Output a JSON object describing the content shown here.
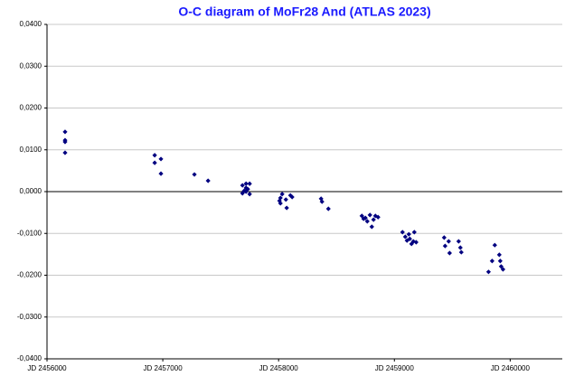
{
  "chart_data": {
    "type": "scatter",
    "title": "O-C diagram of MoFr28 And (ATLAS 2023)",
    "x": [
      2456156,
      2456156,
      2456156,
      2456156,
      2456930,
      2456930,
      2456984,
      2456984,
      2457273,
      2457391,
      2457688,
      2457719,
      2457750,
      2457703,
      2457719,
      2457734,
      2457688,
      2457750,
      2457719,
      2458008,
      2458016,
      2458031,
      2458063,
      2458070,
      2458102,
      2458117,
      2458016,
      2458367,
      2458375,
      2458430,
      2458719,
      2458734,
      2458750,
      2458766,
      2458789,
      2458805,
      2458820,
      2458836,
      2458859,
      2459070,
      2459094,
      2459109,
      2459125,
      2459133,
      2459148,
      2459164,
      2459172,
      2459188,
      2459430,
      2459438,
      2459469,
      2459477,
      2459555,
      2459570,
      2459578,
      2459813,
      2459844,
      2459867,
      2459906,
      2459914,
      2459922,
      2459938
    ],
    "series": [
      {
        "name": "O-C",
        "color": "#000080",
        "values": [
          0.0143,
          0.0123,
          0.0119,
          0.0093,
          0.0087,
          0.0069,
          0.0078,
          0.0043,
          0.0041,
          0.0026,
          0.0015,
          0.0019,
          0.0019,
          0.0002,
          0,
          0.0006,
          -0.0004,
          -0.0006,
          0.0009,
          -0.0022,
          -0.0015,
          -0.0006,
          -0.0019,
          -0.0039,
          -0.0009,
          -0.0013,
          -0.0028,
          -0.0017,
          -0.0024,
          -0.0041,
          -0.0058,
          -0.0065,
          -0.0063,
          -0.0071,
          -0.0056,
          -0.0084,
          -0.0067,
          -0.0058,
          -0.0061,
          -0.0097,
          -0.0108,
          -0.0117,
          -0.0102,
          -0.0113,
          -0.0125,
          -0.0119,
          -0.0097,
          -0.0121,
          -0.011,
          -0.013,
          -0.0119,
          -0.0147,
          -0.0119,
          -0.0134,
          -0.0145,
          -0.0192,
          -0.0166,
          -0.0128,
          -0.0151,
          -0.0166,
          -0.0179,
          -0.0186
        ]
      }
    ],
    "xlim": [
      2456000,
      2460450
    ],
    "xticks": [
      {
        "value": 2456000,
        "label": "JD 2456000"
      },
      {
        "value": 2457000,
        "label": "JD 2457000"
      },
      {
        "value": 2458000,
        "label": "JD 2458000"
      },
      {
        "value": 2459000,
        "label": "JD 2459000"
      },
      {
        "value": 2460000,
        "label": "JD 2460000"
      }
    ],
    "ylim": [
      -0.04,
      0.04
    ],
    "yticks": [
      {
        "value": -0.04,
        "label": "-0,0400"
      },
      {
        "value": -0.03,
        "label": "-0,0300"
      },
      {
        "value": -0.02,
        "label": "-0,0200"
      },
      {
        "value": -0.01,
        "label": "-0,0100"
      },
      {
        "value": 0,
        "label": "0,0000"
      },
      {
        "value": 0.01,
        "label": "0,0100"
      },
      {
        "value": 0.02,
        "label": "0,0200"
      },
      {
        "value": 0.03,
        "label": "0,0300"
      },
      {
        "value": 0.04,
        "label": "0,0400"
      }
    ],
    "grid": true
  }
}
